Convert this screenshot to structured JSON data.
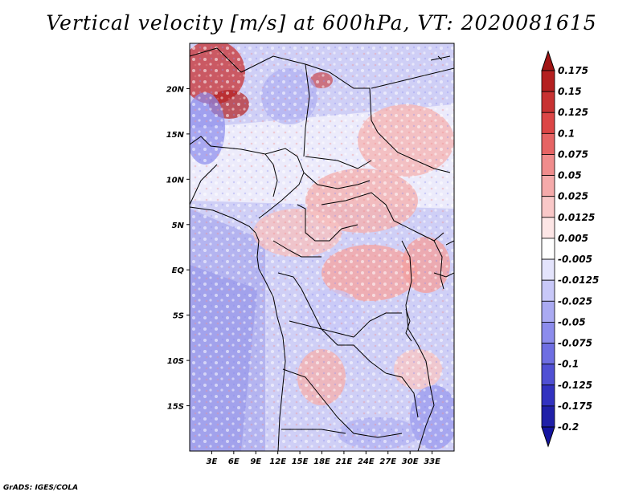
{
  "title": "Vertical velocity [m/s] at 600hPa, VT: 2020081615",
  "credit": "GrADS: IGES/COLA",
  "map": {
    "lon_range": [
      0,
      36
    ],
    "lat_range": [
      -20,
      25
    ],
    "lat_ticks": [
      {
        "value": 20,
        "label": "20N"
      },
      {
        "value": 15,
        "label": "15N"
      },
      {
        "value": 10,
        "label": "10N"
      },
      {
        "value": 5,
        "label": "5N"
      },
      {
        "value": 0,
        "label": "EQ"
      },
      {
        "value": -5,
        "label": "5S"
      },
      {
        "value": -10,
        "label": "10S"
      },
      {
        "value": -15,
        "label": "15S"
      }
    ],
    "lon_ticks": [
      {
        "value": 3,
        "label": "3E"
      },
      {
        "value": 6,
        "label": "6E"
      },
      {
        "value": 9,
        "label": "9E"
      },
      {
        "value": 12,
        "label": "12E"
      },
      {
        "value": 15,
        "label": "15E"
      },
      {
        "value": 18,
        "label": "18E"
      },
      {
        "value": 21,
        "label": "21E"
      },
      {
        "value": 24,
        "label": "24E"
      },
      {
        "value": 27,
        "label": "27E"
      },
      {
        "value": 30,
        "label": "30E"
      },
      {
        "value": 33,
        "label": "33E"
      }
    ]
  },
  "colorbar": {
    "levels": [
      {
        "label": "0.175",
        "color": "#a01414"
      },
      {
        "label": "0.15",
        "color": "#b42020"
      },
      {
        "label": "0.125",
        "color": "#c83232"
      },
      {
        "label": "0.1",
        "color": "#dc4646"
      },
      {
        "label": "0.075",
        "color": "#e66464"
      },
      {
        "label": "0.05",
        "color": "#f08c8c"
      },
      {
        "label": "0.025",
        "color": "#f5aaaa"
      },
      {
        "label": "0.0125",
        "color": "#f9c8c8"
      },
      {
        "label": "0.005",
        "color": "#fde6e6"
      },
      {
        "label": "-0.005",
        "color": "#ffffff"
      },
      {
        "label": "-0.0125",
        "color": "#e4e4fc"
      },
      {
        "label": "-0.025",
        "color": "#c8c8f8"
      },
      {
        "label": "-0.05",
        "color": "#aaaaf2"
      },
      {
        "label": "-0.075",
        "color": "#8c8cec"
      },
      {
        "label": "-0.1",
        "color": "#6e6ee2"
      },
      {
        "label": "-0.125",
        "color": "#5050d4"
      },
      {
        "label": "-0.175",
        "color": "#3232c0"
      },
      {
        "label": "-0.2",
        "color": "#2020a8"
      }
    ],
    "top_color": "#a01414",
    "bottom_color": "#1414a0"
  }
}
